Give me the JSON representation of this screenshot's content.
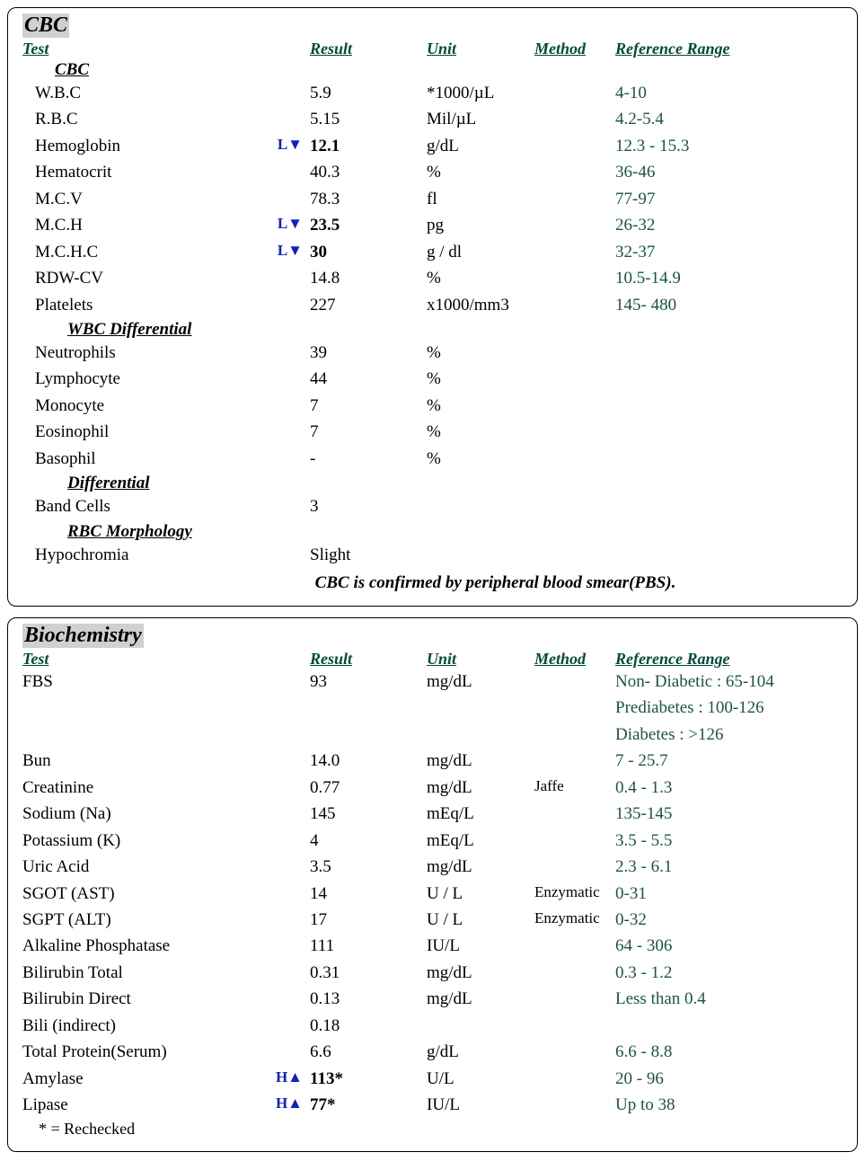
{
  "cbc": {
    "title": "CBC",
    "columns": {
      "test": "Test",
      "result": "Result",
      "unit": "Unit",
      "method": "Method",
      "ref": "Reference Range"
    },
    "groups": [
      {
        "heading": "CBC",
        "rows": [
          {
            "name": "W.B.C",
            "flag": "",
            "result": "5.9",
            "bold": false,
            "unit": "*1000/µL",
            "method": "",
            "ref": "4-10"
          },
          {
            "name": "R.B.C",
            "flag": "",
            "result": "5.15",
            "bold": false,
            "unit": "Mil/µL",
            "method": "",
            "ref": "4.2-5.4"
          },
          {
            "name": "Hemoglobin",
            "flag": "L▼",
            "result": "12.1",
            "bold": true,
            "unit": "g/dL",
            "method": "",
            "ref": "12.3 - 15.3"
          },
          {
            "name": "Hematocrit",
            "flag": "",
            "result": "40.3",
            "bold": false,
            "unit": "%",
            "method": "",
            "ref": "36-46"
          },
          {
            "name": "M.C.V",
            "flag": "",
            "result": "78.3",
            "bold": false,
            "unit": "fl",
            "method": "",
            "ref": "77-97"
          },
          {
            "name": "M.C.H",
            "flag": "L▼",
            "result": "23.5",
            "bold": true,
            "unit": "pg",
            "method": "",
            "ref": "26-32"
          },
          {
            "name": "M.C.H.C",
            "flag": "L▼",
            "result": "30",
            "bold": true,
            "unit": "g / dl",
            "method": "",
            "ref": "32-37"
          },
          {
            "name": "RDW-CV",
            "flag": "",
            "result": "14.8",
            "bold": false,
            "unit": "%",
            "method": "",
            "ref": "10.5-14.9"
          },
          {
            "name": "Platelets",
            "flag": "",
            "result": "227",
            "bold": false,
            "unit": " x1000/mm3",
            "method": "",
            "ref": "145- 480"
          }
        ]
      },
      {
        "heading": "WBC Differential",
        "rows": [
          {
            "name": "Neutrophils",
            "flag": "",
            "result": "39",
            "bold": false,
            "unit": "%",
            "method": "",
            "ref": ""
          },
          {
            "name": "Lymphocyte",
            "flag": "",
            "result": "44",
            "bold": false,
            "unit": "%",
            "method": "",
            "ref": ""
          },
          {
            "name": "Monocyte",
            "flag": "",
            "result": "7",
            "bold": false,
            "unit": "%",
            "method": "",
            "ref": ""
          },
          {
            "name": "Eosinophil",
            "flag": "",
            "result": "7",
            "bold": false,
            "unit": "%",
            "method": "",
            "ref": ""
          },
          {
            "name": "Basophil",
            "flag": "",
            "result": "-",
            "bold": false,
            "unit": "%",
            "method": "",
            "ref": ""
          }
        ]
      },
      {
        "heading": "Differential",
        "rows": [
          {
            "name": "Band Cells",
            "flag": "",
            "result": "3",
            "bold": false,
            "unit": "",
            "method": "",
            "ref": ""
          }
        ]
      },
      {
        "heading": "RBC Morphology",
        "rows": [
          {
            "name": "Hypochromia",
            "flag": "",
            "result": "Slight",
            "bold": false,
            "unit": "",
            "method": "",
            "ref": ""
          }
        ]
      }
    ],
    "footer": "CBC is confirmed by peripheral blood smear(PBS)."
  },
  "bio": {
    "title": "Biochemistry",
    "columns": {
      "test": "Test",
      "result": "Result",
      "unit": "Unit",
      "method": "Method",
      "ref": "Reference Range"
    },
    "rows": [
      {
        "name": "FBS",
        "flag": "",
        "result": "93",
        "bold": false,
        "unit": "mg/dL",
        "method": "",
        "ref": "Non- Diabetic : 65-104\nPrediabetes : 100-126\nDiabetes : >126"
      },
      {
        "name": "Bun",
        "flag": "",
        "result": "14.0",
        "bold": false,
        "unit": "mg/dL",
        "method": "",
        "ref": "7 - 25.7"
      },
      {
        "name": "Creatinine",
        "flag": "",
        "result": "0.77",
        "bold": false,
        "unit": "mg/dL",
        "method": "Jaffe",
        "ref": "0.4 - 1.3"
      },
      {
        "name": "Sodium (Na)",
        "flag": "",
        "result": "145",
        "bold": false,
        "unit": "mEq/L",
        "method": "",
        "ref": "135-145"
      },
      {
        "name": "Potassium (K)",
        "flag": "",
        "result": "4",
        "bold": false,
        "unit": "mEq/L",
        "method": "",
        "ref": "3.5 - 5.5"
      },
      {
        "name": "Uric Acid",
        "flag": "",
        "result": "3.5",
        "bold": false,
        "unit": "mg/dL",
        "method": "",
        "ref": "2.3 - 6.1"
      },
      {
        "name": "SGOT (AST)",
        "flag": "",
        "result": "14",
        "bold": false,
        "unit": "U / L",
        "method": "Enzymatic",
        "ref": "0-31"
      },
      {
        "name": "SGPT (ALT)",
        "flag": "",
        "result": "17",
        "bold": false,
        "unit": "U / L",
        "method": "Enzymatic",
        "ref": "0-32"
      },
      {
        "name": "Alkaline Phosphatase",
        "flag": "",
        "result": "111",
        "bold": false,
        "unit": "IU/L",
        "method": "",
        "ref": "64 - 306"
      },
      {
        "name": "Bilirubin Total",
        "flag": "",
        "result": "0.31",
        "bold": false,
        "unit": "mg/dL",
        "method": "",
        "ref": "0.3 - 1.2"
      },
      {
        "name": "Bilirubin Direct",
        "flag": "",
        "result": "0.13",
        "bold": false,
        "unit": "mg/dL",
        "method": "",
        "ref": "Less than 0.4"
      },
      {
        "name": "Bili (indirect)",
        "flag": "",
        "result": "0.18",
        "bold": false,
        "unit": "",
        "method": "",
        "ref": ""
      },
      {
        "name": "Total Protein(Serum)",
        "flag": "",
        "result": "6.6",
        "bold": false,
        "unit": "g/dL",
        "method": "",
        "ref": "6.6 - 8.8"
      },
      {
        "name": "Amylase",
        "flag": "H▲",
        "result": "113*",
        "bold": true,
        "unit": "U/L",
        "method": "",
        "ref": "20 - 96"
      },
      {
        "name": "Lipase",
        "flag": "H▲",
        "result": "77*",
        "bold": true,
        "unit": "IU/L",
        "method": "",
        "ref": "Up to 38"
      }
    ],
    "rechecked": "* = Rechecked"
  }
}
